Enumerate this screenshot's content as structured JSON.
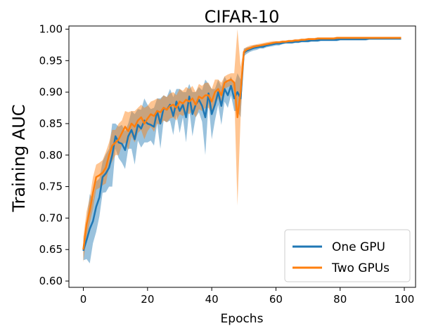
{
  "chart_data": {
    "type": "line",
    "title": "CIFAR-10",
    "xlabel": "Epochs",
    "ylabel": "Training AUC",
    "xlim": [
      -4.5,
      103.5
    ],
    "ylim": [
      0.59,
      1.005
    ],
    "x_ticks": [
      0,
      20,
      40,
      60,
      80,
      100
    ],
    "x_tick_labels": [
      "0",
      "20",
      "40",
      "60",
      "80",
      "100"
    ],
    "y_ticks": [
      0.6,
      0.65,
      0.7,
      0.75,
      0.8,
      0.85,
      0.9,
      0.95,
      1.0
    ],
    "y_tick_labels": [
      "0.60",
      "0.65",
      "0.70",
      "0.75",
      "0.80",
      "0.85",
      "0.90",
      "0.95",
      "1.00"
    ],
    "grid": false,
    "legend_position": "lower-right",
    "x": [
      0,
      1,
      2,
      3,
      4,
      5,
      6,
      7,
      8,
      9,
      10,
      11,
      12,
      13,
      14,
      15,
      16,
      17,
      18,
      19,
      20,
      21,
      22,
      23,
      24,
      25,
      26,
      27,
      28,
      29,
      30,
      31,
      32,
      33,
      34,
      35,
      36,
      37,
      38,
      39,
      40,
      41,
      42,
      43,
      44,
      45,
      46,
      47,
      48,
      49,
      50,
      51,
      52,
      53,
      54,
      55,
      56,
      57,
      58,
      59,
      60,
      61,
      62,
      63,
      64,
      65,
      66,
      67,
      68,
      69,
      70,
      71,
      72,
      73,
      74,
      75,
      76,
      77,
      78,
      79,
      80,
      81,
      82,
      83,
      84,
      85,
      86,
      87,
      88,
      89,
      90,
      91,
      92,
      93,
      94,
      95,
      96,
      97,
      98,
      99
    ],
    "series": [
      {
        "name": "One GPU",
        "color": "#1f77b4",
        "values": [
          0.648,
          0.665,
          0.683,
          0.695,
          0.718,
          0.733,
          0.765,
          0.771,
          0.78,
          0.8,
          0.83,
          0.82,
          0.818,
          0.808,
          0.83,
          0.84,
          0.825,
          0.848,
          0.842,
          0.855,
          0.85,
          0.848,
          0.845,
          0.87,
          0.85,
          0.875,
          0.872,
          0.88,
          0.862,
          0.885,
          0.87,
          0.88,
          0.86,
          0.893,
          0.865,
          0.88,
          0.888,
          0.878,
          0.86,
          0.898,
          0.865,
          0.88,
          0.9,
          0.878,
          0.905,
          0.895,
          0.91,
          0.89,
          0.9,
          0.89,
          0.963,
          0.966,
          0.968,
          0.97,
          0.971,
          0.972,
          0.972,
          0.974,
          0.975,
          0.976,
          0.977,
          0.977,
          0.978,
          0.979,
          0.979,
          0.979,
          0.98,
          0.98,
          0.981,
          0.981,
          0.981,
          0.982,
          0.982,
          0.982,
          0.983,
          0.983,
          0.983,
          0.983,
          0.983,
          0.983,
          0.984,
          0.984,
          0.984,
          0.984,
          0.984,
          0.984,
          0.984,
          0.984,
          0.984,
          0.985,
          0.985,
          0.985,
          0.985,
          0.985,
          0.985,
          0.985,
          0.985,
          0.985,
          0.985,
          0.985
        ],
        "band": [
          0.015,
          0.03,
          0.055,
          0.035,
          0.04,
          0.03,
          0.025,
          0.03,
          0.03,
          0.05,
          0.02,
          0.025,
          0.03,
          0.03,
          0.02,
          0.03,
          0.04,
          0.025,
          0.03,
          0.035,
          0.03,
          0.025,
          0.03,
          0.02,
          0.04,
          0.02,
          0.02,
          0.025,
          0.03,
          0.02,
          0.035,
          0.02,
          0.04,
          0.02,
          0.035,
          0.02,
          0.02,
          0.025,
          0.06,
          0.015,
          0.04,
          0.025,
          0.02,
          0.03,
          0.02,
          0.02,
          0.015,
          0.02,
          0.03,
          0.03,
          0.006,
          0.005,
          0.004,
          0.004,
          0.004,
          0.003,
          0.003,
          0.003,
          0.003,
          0.003,
          0.003,
          0.003,
          0.002,
          0.002,
          0.002,
          0.002,
          0.002,
          0.002,
          0.002,
          0.002,
          0.002,
          0.002,
          0.002,
          0.002,
          0.002,
          0.002,
          0.002,
          0.002,
          0.002,
          0.002,
          0.002,
          0.002,
          0.002,
          0.002,
          0.002,
          0.002,
          0.002,
          0.002,
          0.002,
          0.002,
          0.002,
          0.002,
          0.002,
          0.002,
          0.002,
          0.002,
          0.002,
          0.002,
          0.002,
          0.002
        ]
      },
      {
        "name": "Two GPUs",
        "color": "#ff7f0e",
        "values": [
          0.65,
          0.69,
          0.712,
          0.74,
          0.765,
          0.768,
          0.772,
          0.78,
          0.8,
          0.815,
          0.82,
          0.825,
          0.835,
          0.845,
          0.838,
          0.85,
          0.845,
          0.855,
          0.86,
          0.85,
          0.858,
          0.865,
          0.862,
          0.87,
          0.868,
          0.875,
          0.872,
          0.878,
          0.88,
          0.875,
          0.885,
          0.882,
          0.888,
          0.885,
          0.89,
          0.88,
          0.893,
          0.89,
          0.895,
          0.895,
          0.885,
          0.9,
          0.905,
          0.895,
          0.915,
          0.918,
          0.92,
          0.915,
          0.86,
          0.9,
          0.964,
          0.968,
          0.97,
          0.972,
          0.973,
          0.974,
          0.975,
          0.976,
          0.977,
          0.978,
          0.979,
          0.979,
          0.98,
          0.98,
          0.981,
          0.981,
          0.982,
          0.982,
          0.983,
          0.983,
          0.984,
          0.984,
          0.984,
          0.985,
          0.985,
          0.985,
          0.985,
          0.985,
          0.985,
          0.986,
          0.986,
          0.986,
          0.986,
          0.986,
          0.986,
          0.986,
          0.986,
          0.986,
          0.986,
          0.986,
          0.986,
          0.986,
          0.986,
          0.986,
          0.986,
          0.986,
          0.986,
          0.986,
          0.986,
          0.986
        ],
        "band": [
          0.02,
          0.02,
          0.02,
          0.025,
          0.02,
          0.02,
          0.02,
          0.025,
          0.02,
          0.025,
          0.02,
          0.025,
          0.02,
          0.025,
          0.03,
          0.02,
          0.025,
          0.02,
          0.02,
          0.025,
          0.02,
          0.02,
          0.025,
          0.02,
          0.02,
          0.02,
          0.02,
          0.02,
          0.02,
          0.02,
          0.02,
          0.02,
          0.02,
          0.02,
          0.02,
          0.02,
          0.02,
          0.02,
          0.02,
          0.02,
          0.02,
          0.02,
          0.015,
          0.02,
          0.01,
          0.01,
          0.01,
          0.015,
          0.14,
          0.04,
          0.005,
          0.004,
          0.004,
          0.003,
          0.003,
          0.003,
          0.003,
          0.003,
          0.003,
          0.003,
          0.002,
          0.002,
          0.002,
          0.002,
          0.002,
          0.002,
          0.002,
          0.002,
          0.002,
          0.002,
          0.002,
          0.002,
          0.002,
          0.002,
          0.002,
          0.002,
          0.002,
          0.002,
          0.002,
          0.002,
          0.002,
          0.002,
          0.002,
          0.002,
          0.002,
          0.002,
          0.002,
          0.002,
          0.002,
          0.002,
          0.002,
          0.002,
          0.002,
          0.002,
          0.002,
          0.002,
          0.002,
          0.002,
          0.002,
          0.002
        ]
      }
    ]
  }
}
